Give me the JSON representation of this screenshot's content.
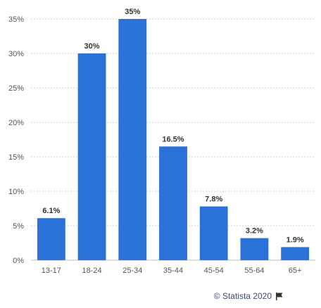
{
  "chart_data": {
    "type": "bar",
    "categories": [
      "13-17",
      "18-24",
      "25-34",
      "35-44",
      "45-54",
      "55-64",
      "65+"
    ],
    "values": [
      6.1,
      30,
      35,
      16.5,
      7.8,
      3.2,
      1.9
    ],
    "value_labels": [
      "6.1%",
      "30%",
      "35%",
      "16.5%",
      "7.8%",
      "3.2%",
      "1.9%"
    ],
    "yticks": [
      0,
      5,
      10,
      15,
      20,
      25,
      30,
      35
    ],
    "ytick_labels": [
      "0%",
      "5%",
      "10%",
      "15%",
      "20%",
      "25%",
      "30%",
      "35%"
    ],
    "ylim": [
      0,
      35
    ],
    "grid": true,
    "bar_color": "#2a72d8"
  },
  "footer": {
    "credit": "© Statista 2020",
    "flag_icon": "flag-icon"
  }
}
